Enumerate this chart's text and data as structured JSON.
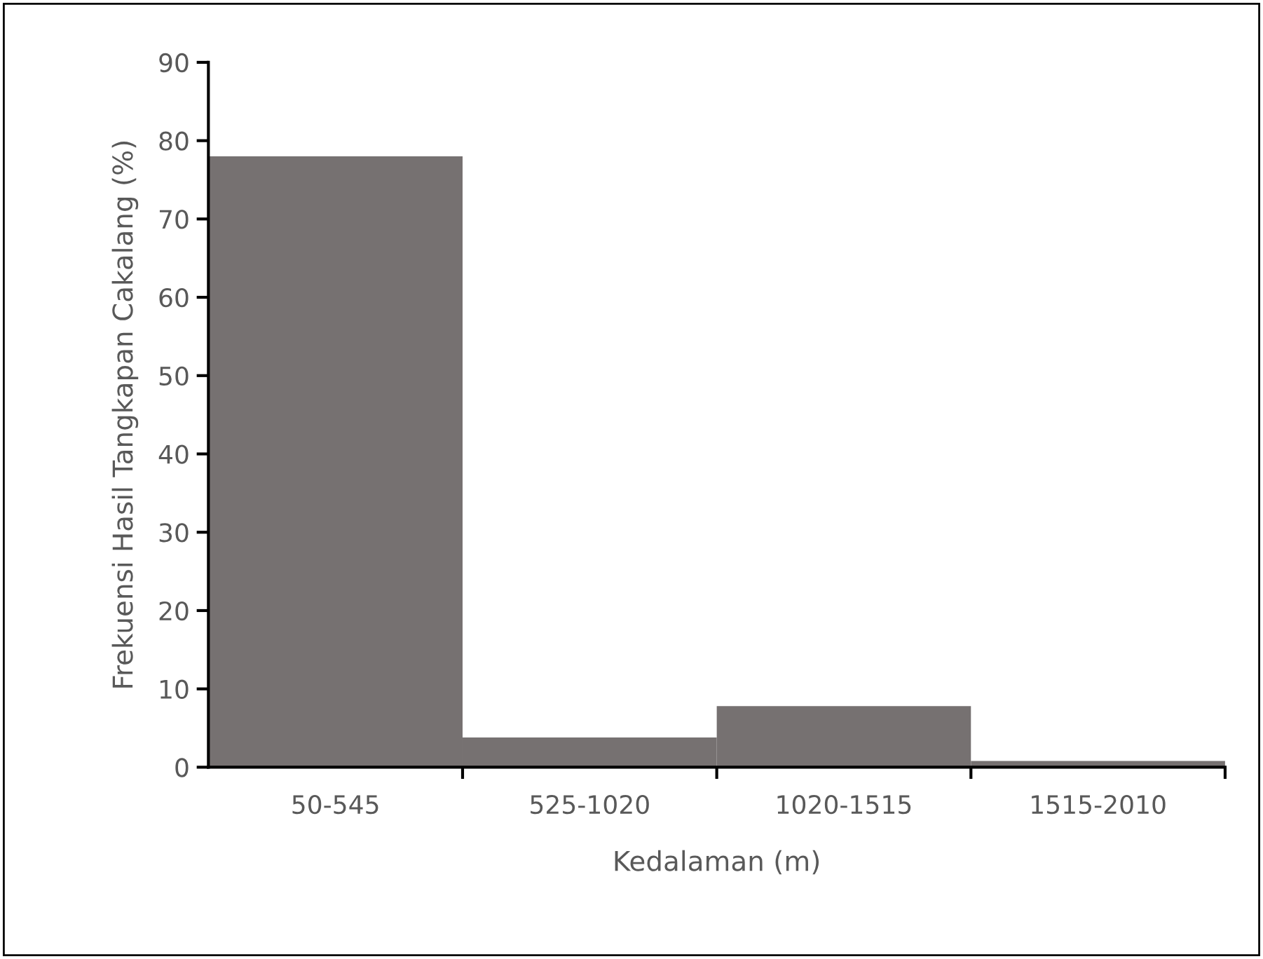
{
  "chart_data": {
    "type": "bar",
    "xlabel": "Kedalaman (m)",
    "ylabel": "Frekuensi Hasil Tangkapan Cakalang (%)",
    "categories": [
      "50-545",
      "525-1020",
      "1020-1515",
      "1515-2010"
    ],
    "values": [
      78,
      3.8,
      7.8,
      0.8
    ],
    "color": "#767171",
    "ylim": [
      0,
      90
    ],
    "yticks": [
      0,
      10,
      20,
      30,
      40,
      50,
      60,
      70,
      80,
      90
    ],
    "grid": false,
    "legend": false
  }
}
